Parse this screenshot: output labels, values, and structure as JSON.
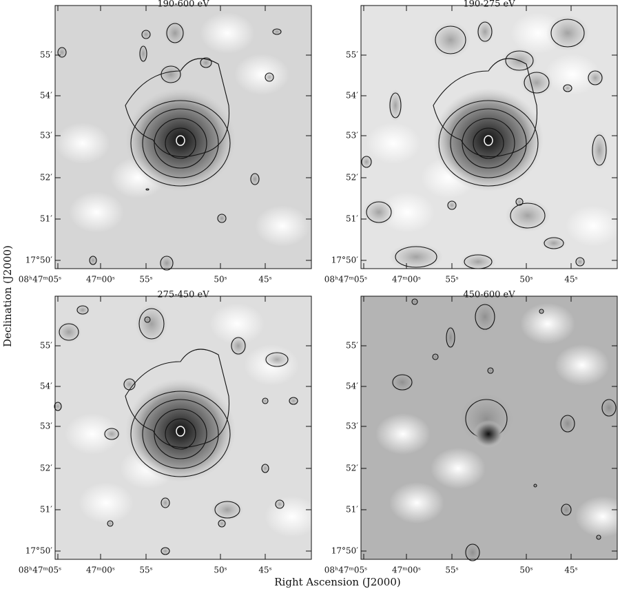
{
  "panels": [
    {
      "title": "190-600 eV"
    },
    {
      "title": "190-275 eV"
    },
    {
      "title": "275-450 eV"
    },
    {
      "title": "450-600 eV"
    }
  ],
  "y_axis_label": "Declination (J2000)",
  "x_axis_label": "Right Ascension (J2000)",
  "dec_ticks": [
    "55′",
    "54′",
    "53′",
    "52′",
    "51′",
    "17°50′"
  ],
  "ra_ticks": [
    "08ʰ47ᵐ05ˢ",
    "47ᵐ00ˢ",
    "55ˢ",
    "50ˢ",
    "45ˢ"
  ]
}
